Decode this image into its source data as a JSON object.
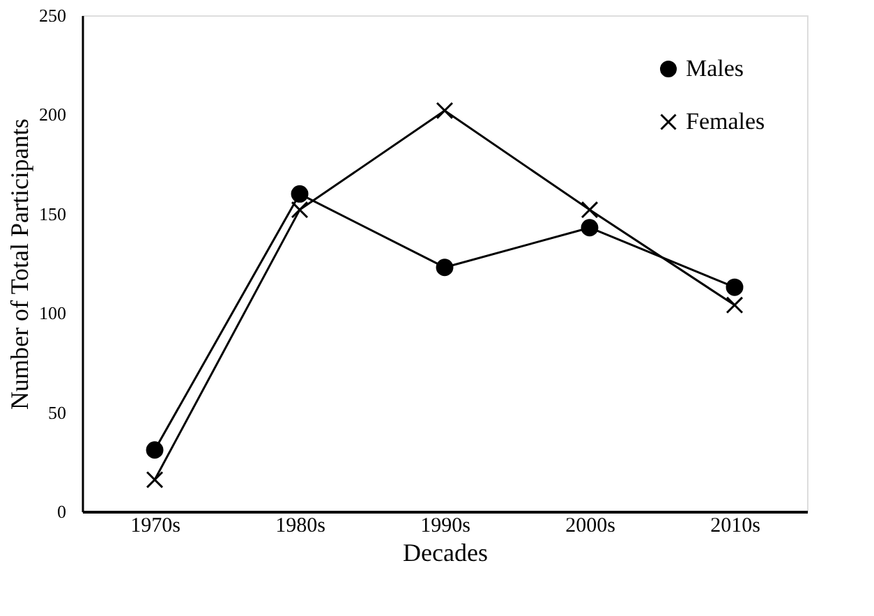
{
  "chart_data": {
    "type": "line",
    "xlabel": "Decades",
    "ylabel": "Number of Total Participants",
    "categories": [
      "1970s",
      "1980s",
      "1990s",
      "2000s",
      "2010s"
    ],
    "series": [
      {
        "name": "Males",
        "color": "#000000",
        "marker": "circle",
        "values": [
          31,
          160,
          123,
          143,
          113
        ]
      },
      {
        "name": "Females",
        "color": "#000000",
        "marker": "cross",
        "values": [
          16,
          152,
          202,
          152,
          104
        ]
      }
    ],
    "ylim": [
      0,
      250
    ],
    "yticks": [
      0,
      50,
      100,
      150,
      200,
      250
    ],
    "grid": false,
    "legend": "top right",
    "line_style": "solid"
  }
}
